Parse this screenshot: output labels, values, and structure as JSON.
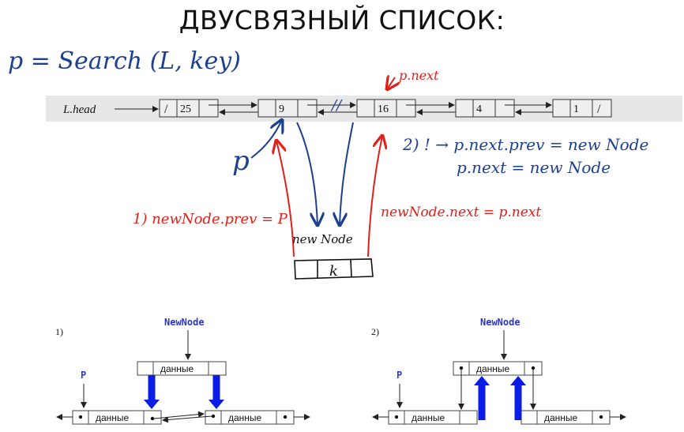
{
  "title": "ДВУСВЯЗНЫЙ СПИСОК:",
  "handwriting": {
    "search": "p = Search (L, key)",
    "p_next_label": "p.next",
    "p_label": "p",
    "break_mark": "//",
    "step2_line1": "2) ! → p.next.prev = new Node",
    "step2_line2": "p.next = new Node",
    "step1": "1)  newNode.prev = P",
    "newnode_next": "newNode.next = p.next",
    "newnode_label": "new Node",
    "k_value": "k"
  },
  "list": {
    "head_label": "L.head",
    "nodes": [
      "25",
      "9",
      "16",
      "4",
      "1"
    ],
    "nil_mark": "/"
  },
  "panels": [
    {
      "number": "1)",
      "newnode": "NewNode",
      "p": "P",
      "data_label": "данные"
    },
    {
      "number": "2)",
      "newnode": "NewNode",
      "p": "P",
      "data_label": "данные"
    }
  ],
  "colors": {
    "blue_ink": "#1d3f8f",
    "red_ink": "#e0201a",
    "bold_arrow": "#0a1de6",
    "label_blue": "#2a35c9",
    "gray_strip": "#e7e7e7"
  }
}
